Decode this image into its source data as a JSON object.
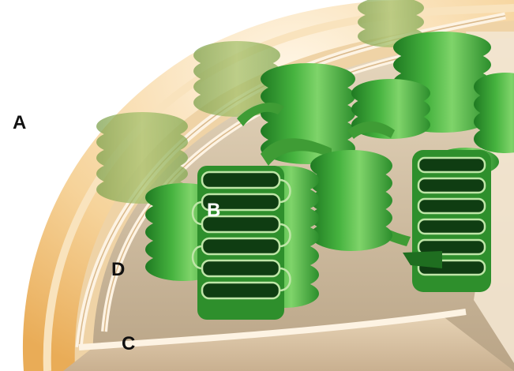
{
  "labels": {
    "a": "A",
    "b": "B",
    "c": "C",
    "d": "D"
  },
  "colors": {
    "outer_envelope": "#f2c47e",
    "outer_envelope_rim": "#fbe7c2",
    "intermembrane_space": "#e9c89a",
    "membrane": "#fdf3e3",
    "stroma": "#c8b59c",
    "thylakoid_green": "#3fae3a",
    "thylakoid_dark": "#1a6b1c",
    "thylakoid_light": "#7fd46a",
    "lumen": "#0f3d12"
  }
}
